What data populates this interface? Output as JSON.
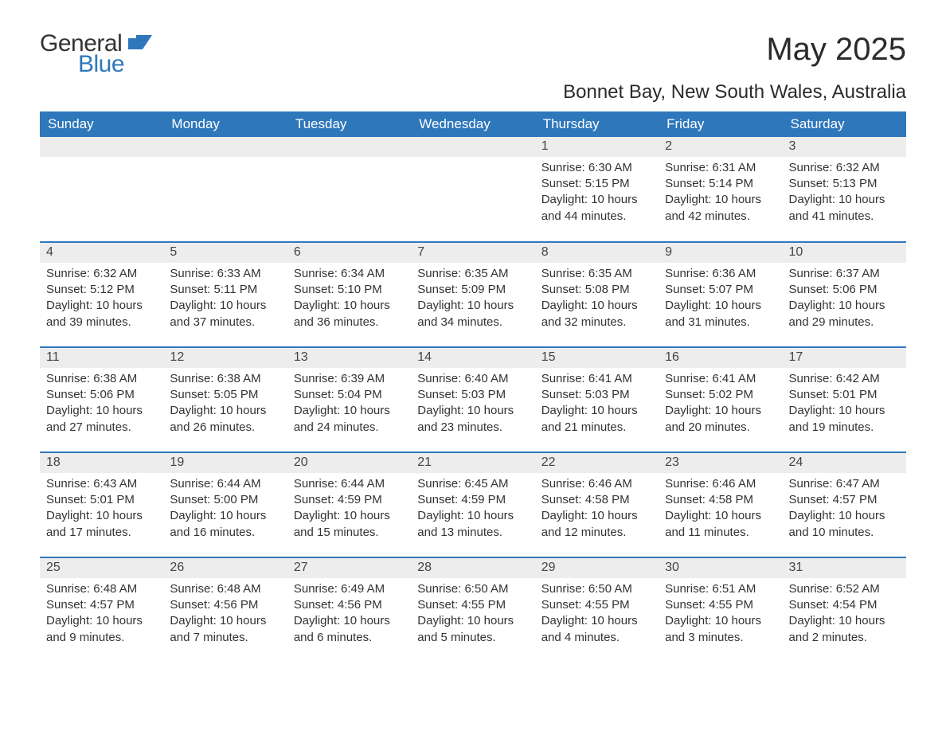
{
  "brand": {
    "word1": "General",
    "word2": "Blue",
    "icon_color": "#2f77bb"
  },
  "title": "May 2025",
  "location": "Bonnet Bay, New South Wales, Australia",
  "colors": {
    "header_bg": "#2f77bb",
    "header_text": "#ffffff",
    "daynum_bg": "#ededed",
    "row_border": "#2f77bb",
    "body_text": "#333333",
    "page_bg": "#ffffff"
  },
  "font": {
    "family": "Segoe UI",
    "title_size_pt": 30,
    "location_size_pt": 18,
    "header_size_pt": 13,
    "body_size_pt": 11
  },
  "day_headers": [
    "Sunday",
    "Monday",
    "Tuesday",
    "Wednesday",
    "Thursday",
    "Friday",
    "Saturday"
  ],
  "labels": {
    "sunrise": "Sunrise:",
    "sunset": "Sunset:",
    "daylight": "Daylight:"
  },
  "weeks": [
    [
      null,
      null,
      null,
      null,
      {
        "n": "1",
        "sunrise": "6:30 AM",
        "sunset": "5:15 PM",
        "daylight": "10 hours and 44 minutes."
      },
      {
        "n": "2",
        "sunrise": "6:31 AM",
        "sunset": "5:14 PM",
        "daylight": "10 hours and 42 minutes."
      },
      {
        "n": "3",
        "sunrise": "6:32 AM",
        "sunset": "5:13 PM",
        "daylight": "10 hours and 41 minutes."
      }
    ],
    [
      {
        "n": "4",
        "sunrise": "6:32 AM",
        "sunset": "5:12 PM",
        "daylight": "10 hours and 39 minutes."
      },
      {
        "n": "5",
        "sunrise": "6:33 AM",
        "sunset": "5:11 PM",
        "daylight": "10 hours and 37 minutes."
      },
      {
        "n": "6",
        "sunrise": "6:34 AM",
        "sunset": "5:10 PM",
        "daylight": "10 hours and 36 minutes."
      },
      {
        "n": "7",
        "sunrise": "6:35 AM",
        "sunset": "5:09 PM",
        "daylight": "10 hours and 34 minutes."
      },
      {
        "n": "8",
        "sunrise": "6:35 AM",
        "sunset": "5:08 PM",
        "daylight": "10 hours and 32 minutes."
      },
      {
        "n": "9",
        "sunrise": "6:36 AM",
        "sunset": "5:07 PM",
        "daylight": "10 hours and 31 minutes."
      },
      {
        "n": "10",
        "sunrise": "6:37 AM",
        "sunset": "5:06 PM",
        "daylight": "10 hours and 29 minutes."
      }
    ],
    [
      {
        "n": "11",
        "sunrise": "6:38 AM",
        "sunset": "5:06 PM",
        "daylight": "10 hours and 27 minutes."
      },
      {
        "n": "12",
        "sunrise": "6:38 AM",
        "sunset": "5:05 PM",
        "daylight": "10 hours and 26 minutes."
      },
      {
        "n": "13",
        "sunrise": "6:39 AM",
        "sunset": "5:04 PM",
        "daylight": "10 hours and 24 minutes."
      },
      {
        "n": "14",
        "sunrise": "6:40 AM",
        "sunset": "5:03 PM",
        "daylight": "10 hours and 23 minutes."
      },
      {
        "n": "15",
        "sunrise": "6:41 AM",
        "sunset": "5:03 PM",
        "daylight": "10 hours and 21 minutes."
      },
      {
        "n": "16",
        "sunrise": "6:41 AM",
        "sunset": "5:02 PM",
        "daylight": "10 hours and 20 minutes."
      },
      {
        "n": "17",
        "sunrise": "6:42 AM",
        "sunset": "5:01 PM",
        "daylight": "10 hours and 19 minutes."
      }
    ],
    [
      {
        "n": "18",
        "sunrise": "6:43 AM",
        "sunset": "5:01 PM",
        "daylight": "10 hours and 17 minutes."
      },
      {
        "n": "19",
        "sunrise": "6:44 AM",
        "sunset": "5:00 PM",
        "daylight": "10 hours and 16 minutes."
      },
      {
        "n": "20",
        "sunrise": "6:44 AM",
        "sunset": "4:59 PM",
        "daylight": "10 hours and 15 minutes."
      },
      {
        "n": "21",
        "sunrise": "6:45 AM",
        "sunset": "4:59 PM",
        "daylight": "10 hours and 13 minutes."
      },
      {
        "n": "22",
        "sunrise": "6:46 AM",
        "sunset": "4:58 PM",
        "daylight": "10 hours and 12 minutes."
      },
      {
        "n": "23",
        "sunrise": "6:46 AM",
        "sunset": "4:58 PM",
        "daylight": "10 hours and 11 minutes."
      },
      {
        "n": "24",
        "sunrise": "6:47 AM",
        "sunset": "4:57 PM",
        "daylight": "10 hours and 10 minutes."
      }
    ],
    [
      {
        "n": "25",
        "sunrise": "6:48 AM",
        "sunset": "4:57 PM",
        "daylight": "10 hours and 9 minutes."
      },
      {
        "n": "26",
        "sunrise": "6:48 AM",
        "sunset": "4:56 PM",
        "daylight": "10 hours and 7 minutes."
      },
      {
        "n": "27",
        "sunrise": "6:49 AM",
        "sunset": "4:56 PM",
        "daylight": "10 hours and 6 minutes."
      },
      {
        "n": "28",
        "sunrise": "6:50 AM",
        "sunset": "4:55 PM",
        "daylight": "10 hours and 5 minutes."
      },
      {
        "n": "29",
        "sunrise": "6:50 AM",
        "sunset": "4:55 PM",
        "daylight": "10 hours and 4 minutes."
      },
      {
        "n": "30",
        "sunrise": "6:51 AM",
        "sunset": "4:55 PM",
        "daylight": "10 hours and 3 minutes."
      },
      {
        "n": "31",
        "sunrise": "6:52 AM",
        "sunset": "4:54 PM",
        "daylight": "10 hours and 2 minutes."
      }
    ]
  ]
}
